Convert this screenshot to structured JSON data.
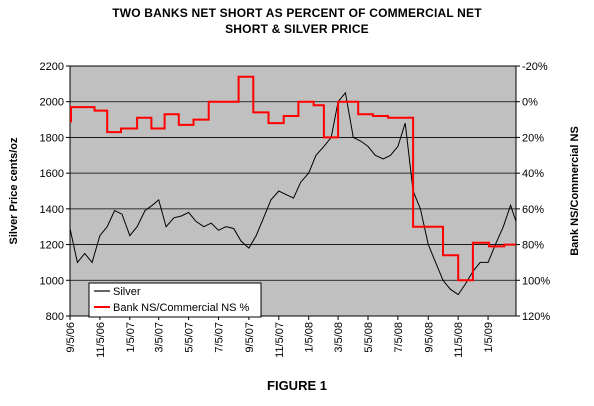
{
  "chart_data": {
    "type": "line",
    "title_line1": "TWO BANKS NET SHORT AS PERCENT OF COMMERCIAL NET",
    "title_line2": "SHORT & SILVER PRICE",
    "figure_label": "FIGURE 1",
    "ylabel_left": "Silver Price cents/oz",
    "ylabel_right": "Bank NS/Commercial NS",
    "ylim_left": [
      800,
      2200
    ],
    "yticks_left": [
      "800",
      "1000",
      "1200",
      "1400",
      "1600",
      "1800",
      "2000",
      "2200"
    ],
    "ylim_right": [
      120,
      -20
    ],
    "yticks_right": [
      "-20%",
      "0%",
      "20%",
      "40%",
      "60%",
      "80%",
      "100%",
      "120%"
    ],
    "xlim": [
      "2006-09-05",
      "2009-03-03"
    ],
    "x_tick_labels": [
      "9/5/06",
      "11/5/06",
      "1/5/07",
      "3/5/07",
      "5/5/07",
      "7/5/07",
      "9/5/07",
      "11/5/07",
      "1/5/08",
      "3/5/08",
      "5/5/08",
      "7/5/08",
      "9/5/08",
      "11/5/08",
      "1/5/09"
    ],
    "grid": "horizontal",
    "background": "#c0c0c0",
    "legend_position": "bottom-left",
    "series": [
      {
        "name": "Silver",
        "color": "#000000",
        "axis": "left",
        "x": [
          "2006-09-05",
          "2006-09-20",
          "2006-10-05",
          "2006-10-20",
          "2006-11-05",
          "2006-11-20",
          "2006-12-05",
          "2006-12-20",
          "2007-01-05",
          "2007-01-20",
          "2007-02-05",
          "2007-02-20",
          "2007-03-05",
          "2007-03-20",
          "2007-04-05",
          "2007-04-20",
          "2007-05-05",
          "2007-05-20",
          "2007-06-05",
          "2007-06-20",
          "2007-07-05",
          "2007-07-20",
          "2007-08-05",
          "2007-08-20",
          "2007-09-05",
          "2007-09-20",
          "2007-10-05",
          "2007-10-20",
          "2007-11-05",
          "2007-11-20",
          "2007-12-05",
          "2007-12-20",
          "2008-01-05",
          "2008-01-20",
          "2008-02-05",
          "2008-02-20",
          "2008-03-05",
          "2008-03-20",
          "2008-04-05",
          "2008-04-20",
          "2008-05-05",
          "2008-05-20",
          "2008-06-05",
          "2008-06-20",
          "2008-07-05",
          "2008-07-20",
          "2008-08-05",
          "2008-08-20",
          "2008-09-05",
          "2008-09-20",
          "2008-10-05",
          "2008-10-20",
          "2008-11-05",
          "2008-11-20",
          "2008-12-05",
          "2008-12-20",
          "2009-01-05",
          "2009-01-20",
          "2009-02-05",
          "2009-02-20",
          "2009-03-03"
        ],
        "values": [
          1290,
          1100,
          1150,
          1100,
          1250,
          1300,
          1390,
          1370,
          1250,
          1300,
          1390,
          1420,
          1450,
          1300,
          1350,
          1360,
          1380,
          1330,
          1300,
          1320,
          1280,
          1300,
          1290,
          1220,
          1180,
          1250,
          1350,
          1450,
          1500,
          1480,
          1460,
          1550,
          1600,
          1700,
          1750,
          1800,
          2000,
          2050,
          1800,
          1780,
          1750,
          1700,
          1680,
          1700,
          1750,
          1880,
          1500,
          1400,
          1200,
          1100,
          1000,
          950,
          920,
          980,
          1050,
          1100,
          1100,
          1200,
          1300,
          1420,
          1330
        ]
      },
      {
        "name": "Bank NS/Commercial NS %",
        "color": "#ff0000",
        "axis": "right",
        "step": true,
        "x": [
          "2006-09-05",
          "2006-09-07",
          "2006-10-25",
          "2006-11-20",
          "2006-12-18",
          "2007-01-20",
          "2007-02-18",
          "2007-03-17",
          "2007-04-15",
          "2007-05-15",
          "2007-06-15",
          "2007-08-15",
          "2007-09-14",
          "2007-10-15",
          "2007-11-15",
          "2007-12-15",
          "2008-01-15",
          "2008-02-05",
          "2008-02-15",
          "2008-03-05",
          "2008-04-15",
          "2008-05-15",
          "2008-06-15",
          "2008-07-05",
          "2008-08-05",
          "2008-08-07",
          "2008-10-05",
          "2008-10-15",
          "2008-11-05",
          "2008-11-15",
          "2008-12-05",
          "2009-01-07",
          "2009-02-07",
          "2009-03-03"
        ],
        "values": [
          11,
          3,
          5,
          17,
          15,
          9,
          15,
          7,
          13,
          10,
          0,
          -14,
          6,
          12,
          8,
          0,
          2,
          20,
          20,
          0,
          7,
          8,
          9,
          9,
          70,
          70,
          86,
          86,
          100,
          100,
          79,
          81,
          80,
          80
        ]
      }
    ]
  }
}
